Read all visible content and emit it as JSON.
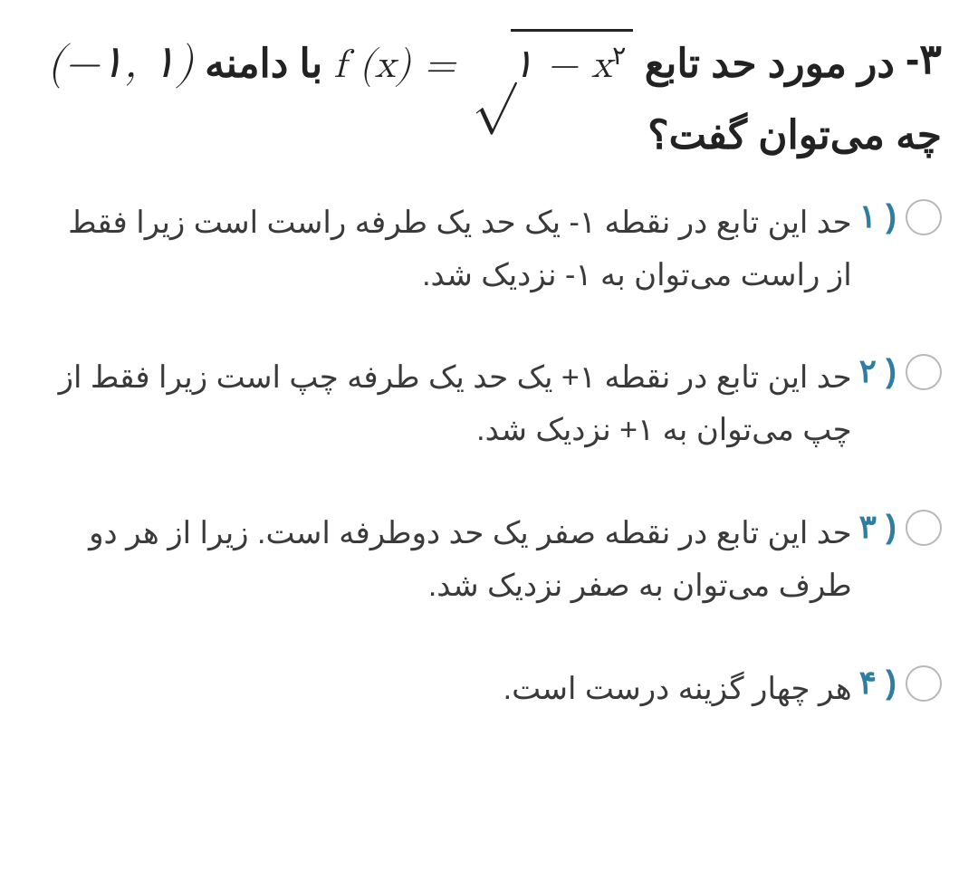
{
  "colors": {
    "text": "#333333",
    "heading": "#222222",
    "accent": "#2e7ea3",
    "radioBorder": "#b8b8b8",
    "background": "#ffffff"
  },
  "question": {
    "number": "-۳",
    "text_pre": "در مورد حد تابع",
    "formula_fx": "f (x) = ",
    "formula_sqrt_inner": "۱ − x",
    "formula_exp": "۲",
    "text_mid": "با دامنه",
    "domain": "(−۱, ۱)",
    "text_post": "چه می‌توان گفت؟"
  },
  "options": [
    {
      "num": "۱ )",
      "text": "حد این تابع در نقطه ۱- یک حد یک طرفه راست است زیرا فقط از راست می‌توان به ۱- نزدیک شد."
    },
    {
      "num": "۲ )",
      "text": "حد این تابع در نقطه ۱+ یک حد یک طرفه چپ است زیرا فقط از چپ می‌توان به ۱+ نزدیک شد."
    },
    {
      "num": "۳ )",
      "text": "حد این تابع در نقطه صفر یک حد دوطرفه است. زیرا از هر دو طرف می‌توان به صفر نزدیک شد."
    },
    {
      "num": "۴ )",
      "text": "هر چهار گزینه درست است."
    }
  ]
}
